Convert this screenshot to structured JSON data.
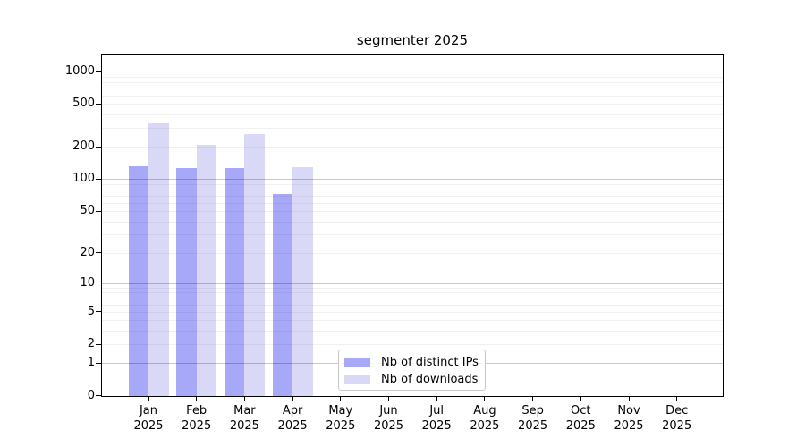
{
  "chart_data": {
    "type": "bar",
    "title": "segmenter 2025",
    "categories": [
      "Jan",
      "Feb",
      "Mar",
      "Apr",
      "May",
      "Jun",
      "Jul",
      "Aug",
      "Sep",
      "Oct",
      "Nov",
      "Dec"
    ],
    "category_year": "2025",
    "series": [
      {
        "name": "Nb of distinct IPs",
        "color": "#a8a8f8",
        "values": [
          133,
          128,
          128,
          72,
          0,
          0,
          0,
          0,
          0,
          0,
          0,
          0
        ]
      },
      {
        "name": "Nb of downloads",
        "color": "#d9d9f7",
        "values": [
          331,
          207,
          265,
          129,
          0,
          0,
          0,
          0,
          0,
          0,
          0,
          0
        ]
      }
    ],
    "yscale": "log1p",
    "y_ticks": [
      0,
      1,
      2,
      5,
      10,
      20,
      50,
      100,
      200,
      500,
      1000
    ],
    "ylim": [
      0,
      1465
    ],
    "grid": true,
    "legend_position": "lower center"
  }
}
